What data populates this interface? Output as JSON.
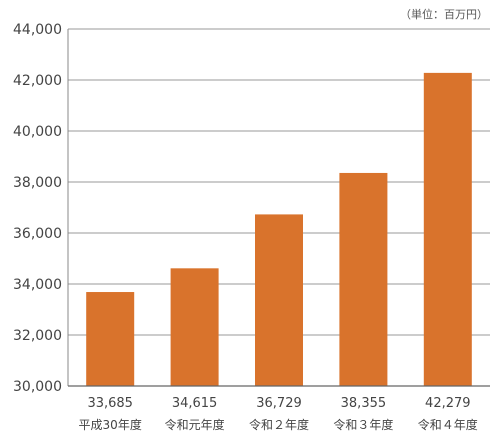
{
  "chart_data": {
    "type": "bar",
    "unit_label": "（単位：百万円）",
    "categories": [
      "平成30年度",
      "令和元年度",
      "令和２年度",
      "令和３年度",
      "令和４年度"
    ],
    "values": [
      33685,
      34615,
      36729,
      38355,
      42279
    ],
    "value_labels": [
      "33,685",
      "34,615",
      "36,729",
      "38,355",
      "42,279"
    ],
    "ylim": [
      30000,
      44000
    ],
    "yticks": [
      30000,
      32000,
      34000,
      36000,
      38000,
      40000,
      42000,
      44000
    ],
    "ytick_labels": [
      "30,000",
      "32,000",
      "34,000",
      "36,000",
      "38,000",
      "40,000",
      "42,000",
      "44,000"
    ],
    "grid": true,
    "bar_color": "#d9732c",
    "grid_color": "#9a9a9a"
  }
}
